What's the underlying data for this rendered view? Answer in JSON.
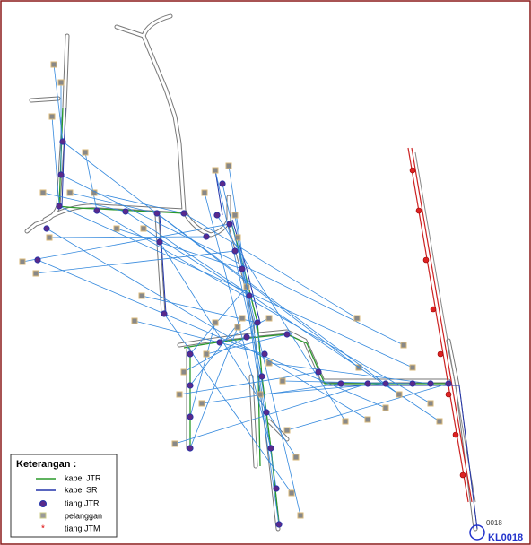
{
  "legend": {
    "title": "Keterangan :",
    "items": [
      {
        "label": "kabel JTR"
      },
      {
        "label": "kabel SR"
      },
      {
        "label": "tiang JTR"
      },
      {
        "label": "pelanggan"
      },
      {
        "label": "tiang JTM"
      }
    ]
  },
  "labels": {
    "substation": "KL0018",
    "substation_code": "0018"
  }
}
